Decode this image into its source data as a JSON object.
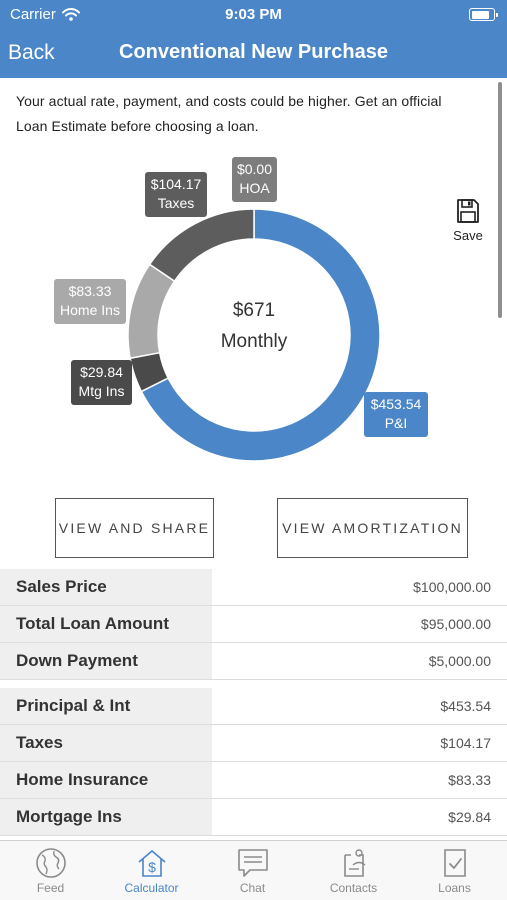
{
  "status_bar": {
    "carrier": "Carrier",
    "time": "9:03 PM",
    "battery_level": 0.85
  },
  "nav": {
    "back_label": "Back",
    "title": "Conventional New Purchase"
  },
  "disclaimer_line1": "Your actual rate, payment, and costs could be higher. Get an official",
  "disclaimer_line2": "Loan Estimate before choosing a loan.",
  "save_label": "Save",
  "chart_data": {
    "type": "pie",
    "center_value": "$671",
    "center_label": "Monthly",
    "slices": [
      {
        "name": "P&I",
        "value": 453.54,
        "value_label": "$453.54",
        "color": "#4a86c8"
      },
      {
        "name": "Mtg Ins",
        "value": 29.84,
        "value_label": "$29.84",
        "color": "#4a4a4a"
      },
      {
        "name": "Home Ins",
        "value": 83.33,
        "value_label": "$83.33",
        "color": "#a9a9a9"
      },
      {
        "name": "Taxes",
        "value": 104.17,
        "value_label": "$104.17",
        "color": "#5d5d5d"
      },
      {
        "name": "HOA",
        "value": 0.0,
        "value_label": "$0.00",
        "color": "#7d7d7d"
      }
    ]
  },
  "buttons": {
    "view_share": "VIEW AND SHARE",
    "view_amortization": "VIEW AMORTIZATION"
  },
  "loan_summary": [
    {
      "label": "Sales Price",
      "value": "$100,000.00"
    },
    {
      "label": "Total Loan Amount",
      "value": "$95,000.00"
    },
    {
      "label": "Down Payment",
      "value": "$5,000.00"
    }
  ],
  "payment_breakdown": [
    {
      "label": "Principal & Int",
      "value": "$453.54"
    },
    {
      "label": "Taxes",
      "value": "$104.17"
    },
    {
      "label": "Home Insurance",
      "value": "$83.33"
    },
    {
      "label": "Mortgage Ins",
      "value": "$29.84"
    }
  ],
  "tabs": [
    {
      "label": "Feed",
      "icon": "globe-icon"
    },
    {
      "label": "Calculator",
      "icon": "house-dollar-icon"
    },
    {
      "label": "Chat",
      "icon": "chat-bubble-icon"
    },
    {
      "label": "Contacts",
      "icon": "contacts-icon"
    },
    {
      "label": "Loans",
      "icon": "document-check-icon"
    }
  ],
  "colors": {
    "brand": "#4a86c8",
    "tab_inactive": "#8a8a8a"
  }
}
